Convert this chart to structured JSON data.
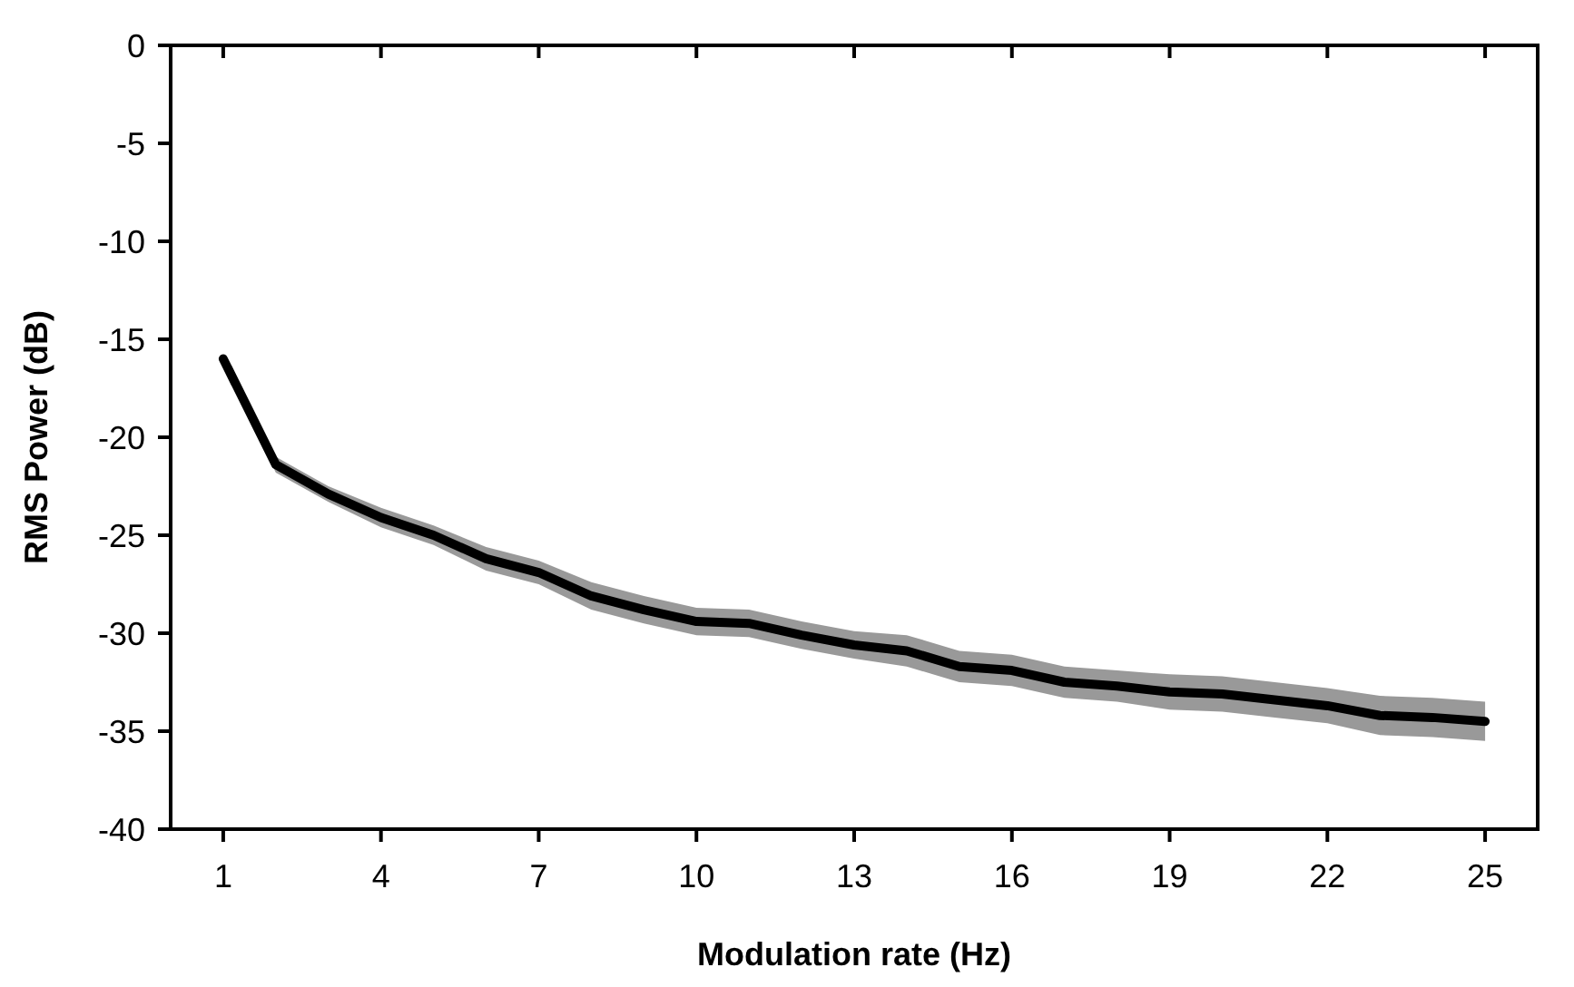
{
  "chart_data": {
    "type": "line",
    "xlabel": "Modulation rate (Hz)",
    "ylabel": "RMS Power (dB)",
    "x": [
      1,
      2,
      3,
      4,
      5,
      6,
      7,
      8,
      9,
      10,
      11,
      12,
      13,
      14,
      15,
      16,
      17,
      18,
      19,
      20,
      21,
      22,
      23,
      24,
      25
    ],
    "series": [
      {
        "color": "#000000",
        "values": [
          -16.0,
          -21.4,
          -22.9,
          -24.1,
          -25.0,
          -26.2,
          -26.9,
          -28.1,
          -28.8,
          -29.4,
          -29.5,
          -30.1,
          -30.6,
          -30.9,
          -31.7,
          -31.9,
          -32.5,
          -32.7,
          -33.0,
          -33.1,
          -33.4,
          -33.7,
          -34.2,
          -34.3,
          -34.5
        ],
        "lower": [
          -16.2,
          -21.8,
          -23.3,
          -24.6,
          -25.5,
          -26.8,
          -27.5,
          -28.8,
          -29.5,
          -30.1,
          -30.2,
          -30.8,
          -31.3,
          -31.7,
          -32.5,
          -32.7,
          -33.3,
          -33.5,
          -33.9,
          -34.0,
          -34.3,
          -34.6,
          -35.2,
          -35.3,
          -35.5
        ],
        "upper": [
          -15.8,
          -21.0,
          -22.5,
          -23.6,
          -24.5,
          -25.6,
          -26.3,
          -27.4,
          -28.1,
          -28.7,
          -28.8,
          -29.4,
          -29.9,
          -30.1,
          -30.9,
          -31.1,
          -31.7,
          -31.9,
          -32.1,
          -32.2,
          -32.5,
          -32.8,
          -33.2,
          -33.3,
          -33.5
        ]
      }
    ],
    "xlim": [
      0,
      26
    ],
    "xticks": [
      1,
      4,
      7,
      10,
      13,
      16,
      19,
      22,
      25
    ],
    "ylim": [
      -40,
      0
    ],
    "yticks": [
      -40,
      -35,
      -30,
      -25,
      -20,
      -15,
      -10,
      -5,
      0
    ],
    "line_style": "solid"
  }
}
